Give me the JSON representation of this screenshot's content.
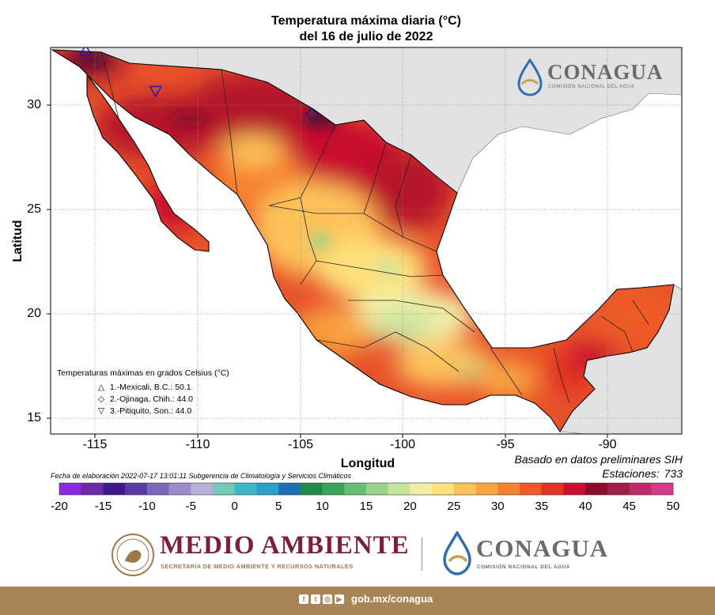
{
  "title_line1": "Temperatura máxima diaria (°C)",
  "title_line2": "del 16 de julio de 2022",
  "x_axis": {
    "label": "Longitud",
    "ticks": [
      "-115",
      "-110",
      "-105",
      "-100",
      "-95",
      "-90"
    ]
  },
  "y_axis": {
    "label": "Latitud",
    "ticks": [
      "30",
      "25",
      "20",
      "15"
    ]
  },
  "basis_text": "Basado en datos preliminares SIH",
  "stations_label": "Estaciones:",
  "stations_value": "733",
  "fecha_text": "Fecha de elaboración 2022-07-17 13:01:11 Subgerencia de Climatología y Servicios Climáticos",
  "legend": {
    "title": "Temperaturas máximas en grados Celsius (°C)",
    "items": [
      {
        "symbol": "triangle-up",
        "text": "1.-Mexicali, B.C.: 50.1",
        "lon": -115.45,
        "lat": 32.62
      },
      {
        "symbol": "diamond",
        "text": "2.-Ojinaga, Chih.: 44.0",
        "lon": -104.42,
        "lat": 29.56
      },
      {
        "symbol": "triangle-down",
        "text": "3.-Pitiquito, Son.: 44.0",
        "lon": -112.04,
        "lat": 30.68
      }
    ]
  },
  "colorbar": {
    "ticks": [
      "-20",
      "-15",
      "-10",
      "-5",
      "0",
      "5",
      "10",
      "15",
      "20",
      "25",
      "30",
      "35",
      "40",
      "45",
      "50"
    ],
    "colors": [
      "#8a2be2",
      "#6a2aa8",
      "#3f1a8c",
      "#5a3aa5",
      "#7b66b8",
      "#9a8cc8",
      "#b9b1d9",
      "#74c9b8",
      "#3db8c6",
      "#29a0c9",
      "#1e6fb3",
      "#1f8a4a",
      "#3aa55a",
      "#66bf73",
      "#9bd48d",
      "#c8e59e",
      "#f2f0a8",
      "#fde17a",
      "#fdc35a",
      "#f9a43f",
      "#f6822f",
      "#ef5a28",
      "#e23222",
      "#c8102e",
      "#8e0b2b",
      "#a01c4a",
      "#c02a6a",
      "#d43c8a"
    ]
  },
  "map": {
    "type": "filled-contour",
    "variable": "daily maximum temperature (°C)",
    "lon_range": [
      -117,
      -87
    ],
    "lat_range": [
      14.5,
      32.9
    ],
    "grid": true,
    "colors": {
      "land_outside": "#e2e2e2",
      "sea": "#ffffff",
      "border": "#000000",
      "grid": "#888888"
    }
  },
  "logo_conagua": {
    "name": "CONAGUA",
    "subtitle": "COMISIÓN NACIONAL DEL AGUA"
  },
  "footer": {
    "semarnat_title": "MEDIO AMBIENTE",
    "semarnat_subtitle": "SECRETARÍA DE MEDIO AMBIENTE Y RECURSOS NATURALES",
    "conagua_name": "CONAGUA",
    "conagua_subtitle": "COMISIÓN NACIONAL DEL AGUA",
    "social_icons": [
      "facebook-icon",
      "twitter-icon",
      "instagram-icon",
      "youtube-icon"
    ],
    "url": "gob.mx/conagua"
  }
}
